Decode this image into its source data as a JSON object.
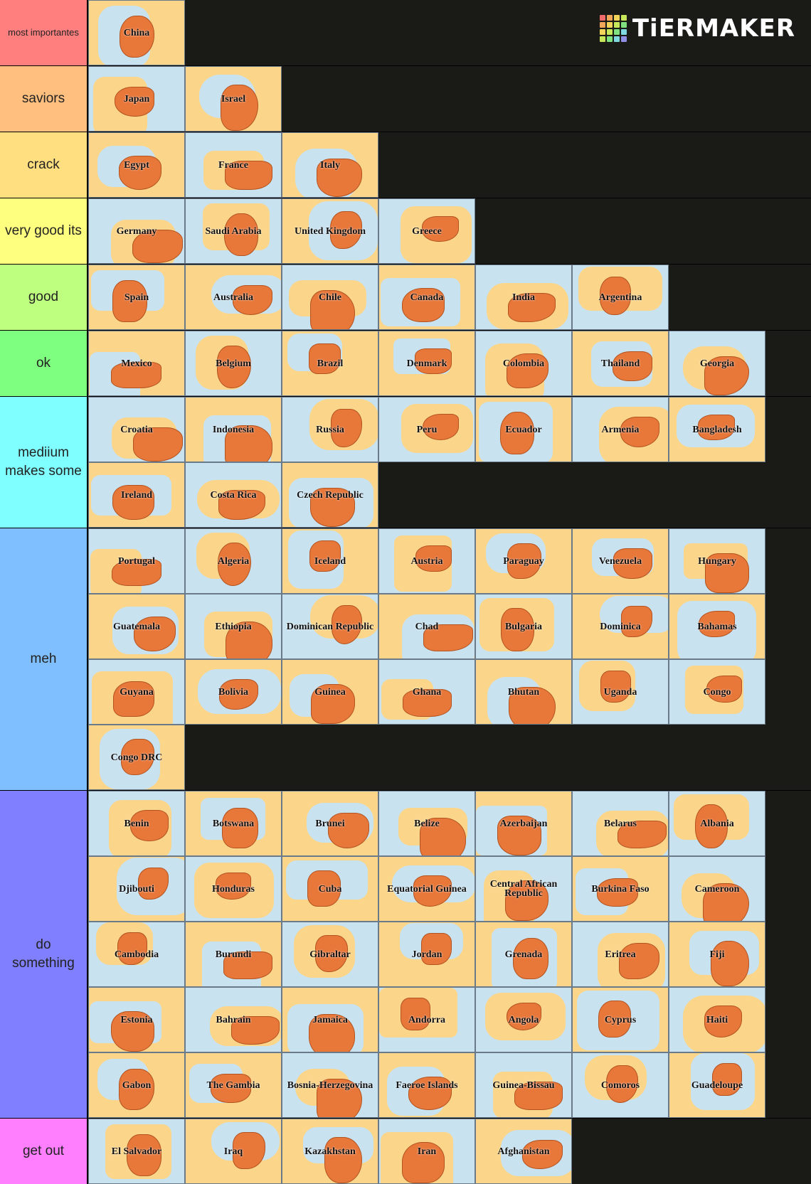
{
  "logo": "TiERMAKER",
  "tiers": [
    {
      "label": "most importantes",
      "color": "#ff7f7f",
      "items": [
        "China"
      ]
    },
    {
      "label": "saviors",
      "color": "#ffbf7f",
      "items": [
        "Japan",
        "Israel"
      ]
    },
    {
      "label": "crack",
      "color": "#ffdf7f",
      "items": [
        "Egypt",
        "France",
        "Italy"
      ]
    },
    {
      "label": "very good its",
      "color": "#ffff7f",
      "items": [
        "Germany",
        "Saudi Arabia",
        "United Kingdom",
        "Greece"
      ]
    },
    {
      "label": "good",
      "color": "#bfff7f",
      "items": [
        "Spain",
        "Australia",
        "Chile",
        "Canada",
        "India",
        "Argentina"
      ]
    },
    {
      "label": "ok",
      "color": "#7fff7f",
      "items": [
        "Mexico",
        "Belgium",
        "Brazil",
        "Denmark",
        "Colombia",
        "Thailand",
        "Georgia"
      ]
    },
    {
      "label": "mediium makes some",
      "color": "#7fffff",
      "items": [
        "Croatia",
        "Indonesia",
        "Russia",
        "Peru",
        "Ecuador",
        "Armenia",
        "Bangladesh",
        "Ireland",
        "Costa Rica",
        "Czech Republic"
      ]
    },
    {
      "label": "meh",
      "color": "#7fbfff",
      "items": [
        "Portugal",
        "Algeria",
        "Iceland",
        "Austria",
        "Paraguay",
        "Venezuela",
        "Hungary",
        "Guatemala",
        "Ethiopia",
        "Dominican Republic",
        "Chad",
        "Bulgaria",
        "Dominica",
        "Bahamas",
        "Guyana",
        "Bolivia",
        "Guinea",
        "Ghana",
        "Bhutan",
        "Uganda",
        "Congo",
        "Congo DRC"
      ]
    },
    {
      "label": "do something",
      "color": "#7f7fff",
      "items": [
        "Benin",
        "Botswana",
        "Brunei",
        "Belize",
        "Azerbaijan",
        "Belarus",
        "Albania",
        "Djibouti",
        "Honduras",
        "Cuba",
        "Equatorial Guinea",
        "Central African Republic",
        "Burkina Faso",
        "Cameroon",
        "Cambodia",
        "Burundi",
        "Gibraltar",
        "Jordan",
        "Grenada",
        "Eritrea",
        "Fiji",
        "Estonia",
        "Bahrain",
        "Jamaica",
        "Andorra",
        "Angola",
        "Cyprus",
        "Haiti",
        "Gabon",
        "The Gambia",
        "Bosnia-Herzegovina",
        "Faeroe Islands",
        "Guinea-Bissau",
        "Comoros",
        "Guadeloupe"
      ]
    },
    {
      "label": "get out",
      "color": "#ff7fff",
      "items": [
        "El Salvador",
        "Iraq",
        "Kazakhstan",
        "Iran",
        "Afghanistan"
      ]
    }
  ]
}
